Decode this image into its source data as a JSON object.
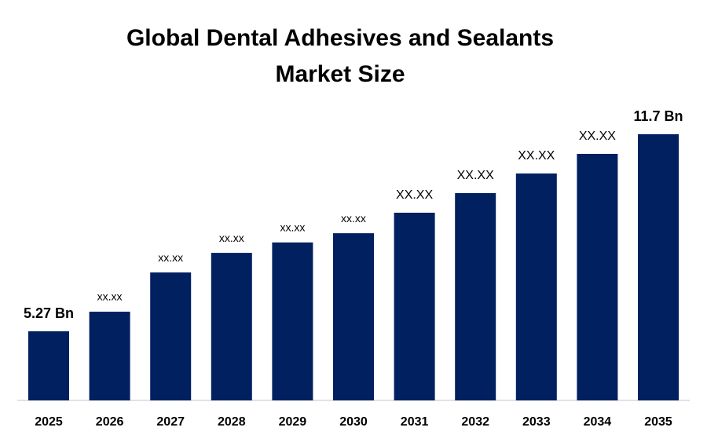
{
  "chart_data": {
    "type": "bar",
    "title": "Global Dental Adhesives and Sealants Market Size",
    "categories": [
      "2025",
      "2026",
      "2027",
      "2028",
      "2029",
      "2030",
      "2031",
      "2032",
      "2033",
      "2034",
      "2035"
    ],
    "values": [
      5.27,
      5.91,
      7.19,
      7.83,
      8.17,
      8.47,
      9.14,
      9.78,
      10.42,
      11.06,
      11.7
    ],
    "value_labels": [
      "5.27 Bn",
      "xx.xx",
      "xx.xx",
      "xx.xx",
      "xx.xx",
      "xx.xx",
      "XX.XX",
      "XX.XX",
      "XX.XX",
      "XX.XX",
      "11.7 Bn"
    ],
    "color": "#002060"
  }
}
